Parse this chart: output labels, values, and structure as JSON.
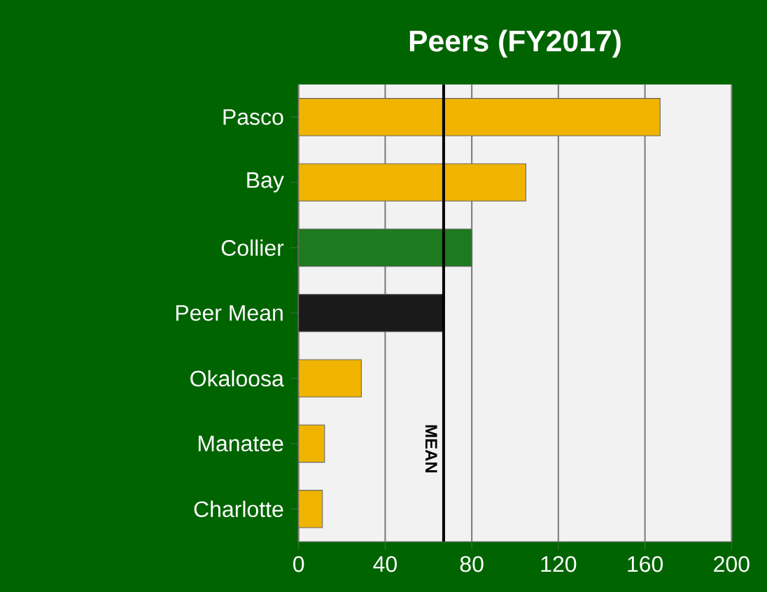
{
  "chart_data": {
    "type": "bar",
    "orientation": "horizontal",
    "title": "Peers (FY2017)",
    "categories": [
      "Pasco",
      "Bay",
      "Collier",
      "Peer Mean",
      "Okaloosa",
      "Manatee",
      "Charlotte"
    ],
    "values": [
      167,
      105,
      80,
      67,
      29,
      12,
      11
    ],
    "colors": [
      "#f0b400",
      "#f0b400",
      "#1e7a1e",
      "#1a1a1a",
      "#f0b400",
      "#f0b400",
      "#f0b400"
    ],
    "xlim": [
      0,
      200
    ],
    "xticks": [
      0,
      40,
      80,
      120,
      160,
      200
    ],
    "grid": "x",
    "ref_lines": [
      {
        "axis": "x",
        "value": 67,
        "label": "MEAN",
        "color": "#000000"
      }
    ]
  }
}
